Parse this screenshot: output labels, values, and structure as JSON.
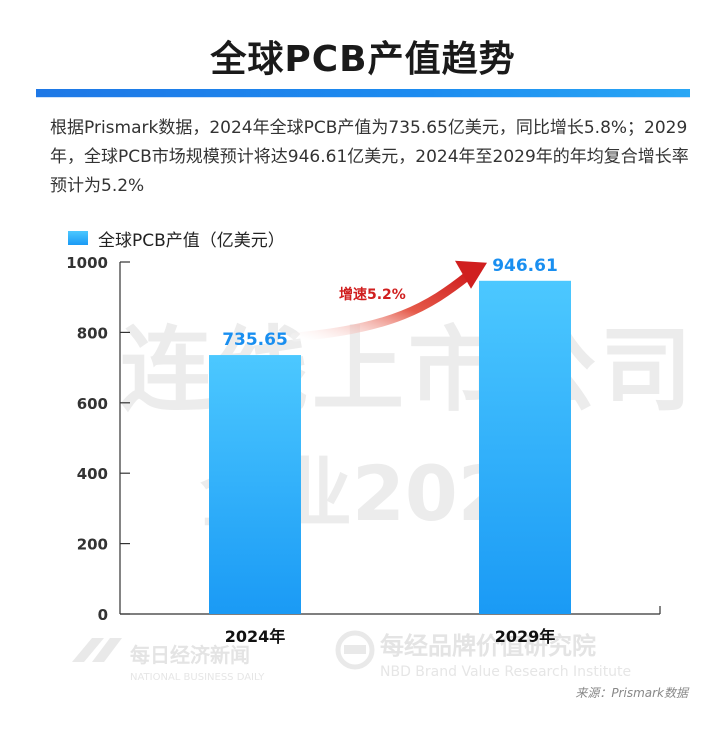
{
  "title": "全球PCB产值趋势",
  "summary": "根据Prismark数据，2024年全球PCB产值为735.65亿美元，同比增长5.8%；2029年，全球PCB市场规模预计将达946.61亿美元，2024年至2029年的年均复合增长率预计为5.2%",
  "source": "来源：Prismark数据",
  "watermark": {
    "main": "连线上市公司",
    "sub": "企业2024",
    "brand1_cn": "每日经济新闻",
    "brand1_en": "NATIONAL BUSINESS DAILY",
    "brand2_cn": "每经品牌价值研究院",
    "brand2_en": "NBD Brand Value Research Institute"
  },
  "colors": {
    "bar_top": "#4cc8ff",
    "bar_bottom": "#1a9af5",
    "value_label": "#1a8ff0",
    "arrow": "#d01f1f",
    "title_bar": "#1e78e6"
  },
  "chart_data": {
    "type": "bar",
    "categories": [
      "2024年",
      "2029年"
    ],
    "series": [
      {
        "name": "全球PCB产值（亿美元）",
        "values": [
          735.65,
          946.61
        ]
      }
    ],
    "data_labels": [
      "735.65",
      "946.61"
    ],
    "ylim": [
      0,
      1000
    ],
    "yticks": [
      0,
      200,
      400,
      600,
      800,
      1000
    ],
    "annotation": "增速5.2%",
    "grid": false,
    "legend": "top-left"
  }
}
